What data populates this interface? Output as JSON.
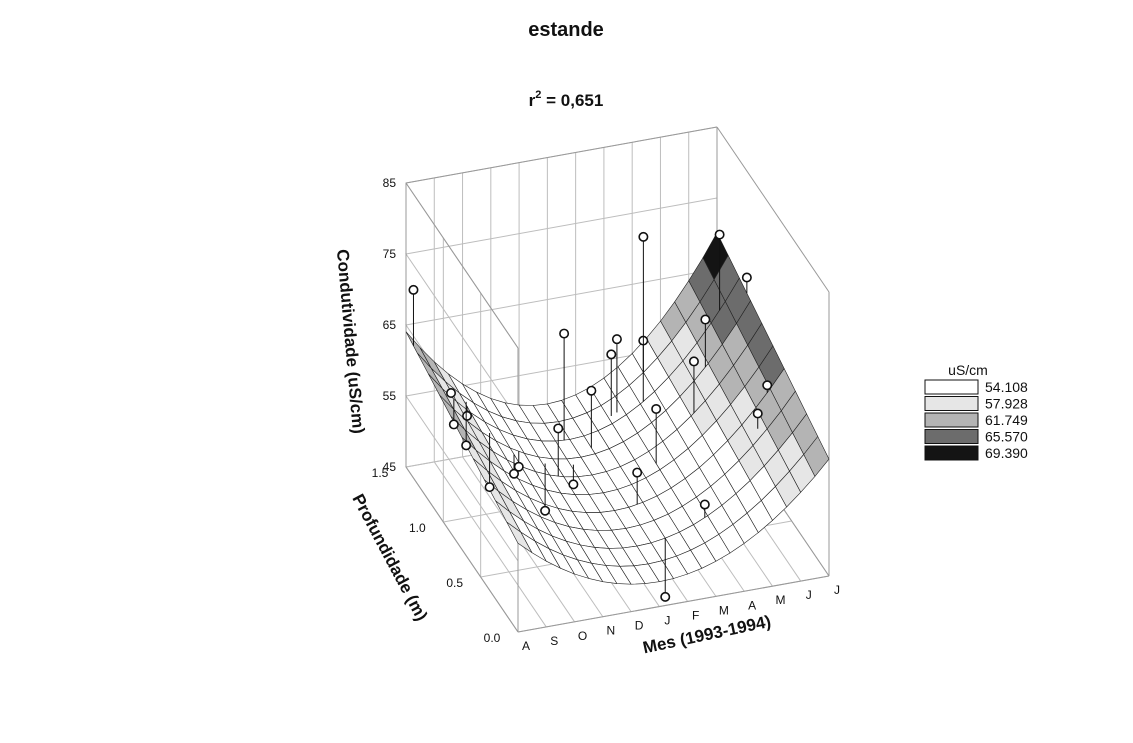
{
  "chart_data": {
    "type": "surface3d",
    "title": "estande",
    "subtitle": {
      "prefix": "r",
      "superscript": "2",
      "suffix": " = 0,651"
    },
    "zlabel": "Condutividade (uS/cm)",
    "zticks": [
      45,
      55,
      65,
      75,
      85
    ],
    "zlim": [
      45,
      85
    ],
    "ylabel": "Profundidade (m)",
    "yticks": [
      "0.0",
      "0.5",
      "1.0",
      "1.5"
    ],
    "ylim": [
      0,
      1.5
    ],
    "xlabel": "Mes (1993-1994)",
    "xticks": [
      "A",
      "S",
      "O",
      "N",
      "D",
      "J",
      "F",
      "M",
      "A",
      "M",
      "J",
      "J"
    ],
    "legend": {
      "title": "uS/cm",
      "position": "right",
      "levels": [
        {
          "label": "54.108",
          "color": "#ffffff"
        },
        {
          "label": "57.928",
          "color": "#e6e6e6"
        },
        {
          "label": "61.749",
          "color": "#b4b4b4"
        },
        {
          "label": "65.570",
          "color": "#6c6c6c"
        },
        {
          "label": "69.390",
          "color": "#141414"
        }
      ]
    },
    "points": [
      {
        "month": 0,
        "depth": 1.4,
        "value": 71.5
      },
      {
        "month": 0.8,
        "depth": 1.2,
        "value": 59.5
      },
      {
        "month": 0.9,
        "depth": 1.2,
        "value": 55
      },
      {
        "month": 1.5,
        "depth": 1.25,
        "value": 55
      },
      {
        "month": 1.6,
        "depth": 1.3,
        "value": 50
      },
      {
        "month": 1.9,
        "depth": 1.1,
        "value": 47
      },
      {
        "month": 2.5,
        "depth": 1.0,
        "value": 50
      },
      {
        "month": 2.8,
        "depth": 1.05,
        "value": 50
      },
      {
        "month": 3.6,
        "depth": 1.0,
        "value": 44
      },
      {
        "month": 3.8,
        "depth": 0.9,
        "value": 57
      },
      {
        "month": 4.6,
        "depth": 1.0,
        "value": 47
      },
      {
        "month": 4.8,
        "depth": 1.2,
        "value": 65
      },
      {
        "month": 5.5,
        "depth": 1.1,
        "value": 58
      },
      {
        "month": 5.8,
        "depth": 0.6,
        "value": 54
      },
      {
        "month": 6.6,
        "depth": 1.25,
        "value": 60
      },
      {
        "month": 6.8,
        "depth": 1.25,
        "value": 62
      },
      {
        "month": 6.0,
        "depth": 0.3,
        "value": 41
      },
      {
        "month": 7.0,
        "depth": 0.8,
        "value": 59
      },
      {
        "month": 7.4,
        "depth": 0.3,
        "value": 53
      },
      {
        "month": 7.6,
        "depth": 1.2,
        "value": 62
      },
      {
        "month": 8.0,
        "depth": 1.35,
        "value": 74
      },
      {
        "month": 8.6,
        "depth": 0.9,
        "value": 63
      },
      {
        "month": 9.4,
        "depth": 1.05,
        "value": 66
      },
      {
        "month": 9.8,
        "depth": 0.5,
        "value": 61
      },
      {
        "month": 10.3,
        "depth": 1.2,
        "value": 75
      },
      {
        "month": 10.4,
        "depth": 0.6,
        "value": 63
      },
      {
        "month": 11.0,
        "depth": 1.1,
        "value": 70
      }
    ]
  }
}
